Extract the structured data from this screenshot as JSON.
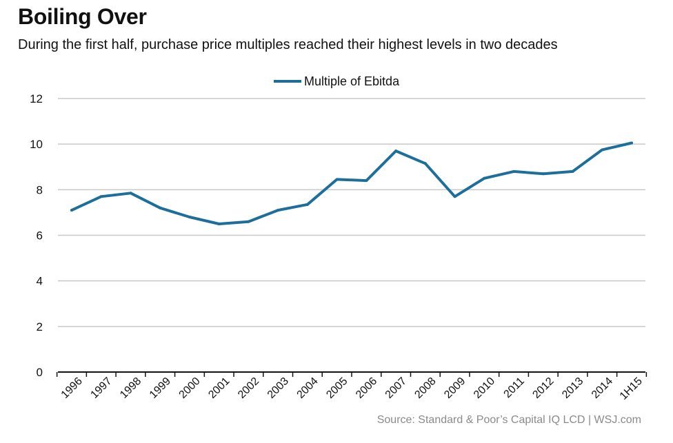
{
  "header": {
    "title": "Boiling Over",
    "subtitle": "During the first half, purchase price multiples reached their highest levels in two decades"
  },
  "footer": {
    "source": "Source: Standard & Poor’s Capital IQ LCD  |  WSJ.com"
  },
  "colors": {
    "series": "#1b6f9a",
    "grid": "#c8c8c8",
    "axis": "#111111",
    "source_text": "#8a8a8a"
  },
  "chart_data": {
    "type": "line",
    "title": "Boiling Over",
    "subtitle": "During the first half, purchase price multiples reached their highest levels in two decades",
    "xlabel": "",
    "ylabel": "",
    "categories": [
      "1996",
      "1997",
      "1998",
      "1999",
      "2000",
      "2001",
      "2002",
      "2003",
      "2004",
      "2005",
      "2006",
      "2007",
      "2008",
      "2009",
      "2010",
      "2011",
      "2012",
      "2013",
      "2014",
      "1H15"
    ],
    "series": [
      {
        "name": "Multiple of Ebitda",
        "values": [
          7.1,
          7.7,
          7.85,
          7.2,
          6.8,
          6.5,
          6.6,
          7.1,
          7.35,
          8.45,
          8.4,
          9.7,
          9.15,
          7.7,
          8.5,
          8.8,
          8.7,
          8.8,
          9.75,
          10.05
        ]
      }
    ],
    "ylim": [
      0,
      12
    ],
    "yticks": [
      0,
      2,
      4,
      6,
      8,
      10,
      12
    ],
    "grid": true,
    "legend": "top-center"
  }
}
